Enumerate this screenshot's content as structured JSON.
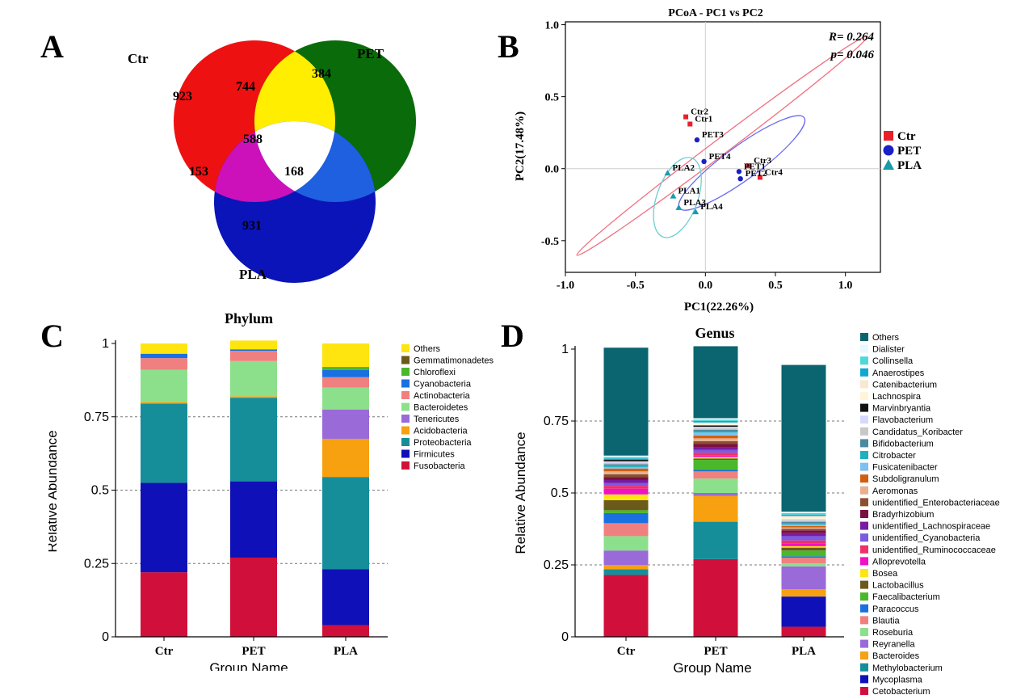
{
  "panels": {
    "a": "A",
    "b": "B",
    "c": "C",
    "d": "D"
  },
  "chart_data": [
    {
      "type": "venn",
      "sets": [
        "Ctr",
        "PET",
        "PLA"
      ],
      "regions": {
        "ctr_only": 923,
        "pet_only": 384,
        "pla_only": 931,
        "ctr_pet": 744,
        "ctr_pla": 153,
        "pet_pla": 168,
        "all": 588
      },
      "colors": {
        "ctr_only": "#ee1111",
        "pet_only": "#0a6b0a",
        "pla_only": "#0a14b8",
        "ctr_pet": "#ffee00",
        "ctr_pla": "#cc11bb",
        "pet_pla": "#1e60e0",
        "all": "#ffffff"
      }
    },
    {
      "type": "scatter",
      "title": "PCoA - PC1 vs PC2",
      "xlabel": "PC1(22.26%)",
      "ylabel": "PC2(17.48%)",
      "xlim": [
        -1.0,
        1.25
      ],
      "ylim": [
        -0.72,
        1.02
      ],
      "xticks": [
        "-1.0",
        "-0.5",
        "0.0",
        "0.5",
        "1.0"
      ],
      "yticks": [
        "-0.5",
        "0.0",
        "0.5",
        "1.0"
      ],
      "stats": {
        "r": "R= 0.264",
        "p": "p= 0.046"
      },
      "series": [
        {
          "name": "Ctr",
          "color": "#e8202a",
          "marker": "square",
          "points": [
            {
              "label": "Ctr2",
              "x": -0.14,
              "y": 0.36
            },
            {
              "label": "Ctr1",
              "x": -0.11,
              "y": 0.31
            },
            {
              "label": "Ctr3",
              "x": 0.31,
              "y": 0.02
            },
            {
              "label": "Ctr4",
              "x": 0.39,
              "y": -0.06
            }
          ]
        },
        {
          "name": "PET",
          "color": "#1a1fc8",
          "marker": "circle",
          "points": [
            {
              "label": "PET3",
              "x": -0.06,
              "y": 0.2
            },
            {
              "label": "PET4",
              "x": -0.01,
              "y": 0.05
            },
            {
              "label": "PET1",
              "x": 0.24,
              "y": -0.02
            },
            {
              "label": "PET2",
              "x": 0.25,
              "y": -0.07
            }
          ]
        },
        {
          "name": "PLA",
          "color": "#1a9ba8",
          "marker": "triangle",
          "points": [
            {
              "label": "PLA2",
              "x": -0.27,
              "y": -0.03
            },
            {
              "label": "PLA1",
              "x": -0.23,
              "y": -0.19
            },
            {
              "label": "PLA3",
              "x": -0.19,
              "y": -0.27
            },
            {
              "label": "PLA4",
              "x": -0.07,
              "y": -0.3
            }
          ]
        }
      ],
      "ellipses": [
        {
          "series": "Ctr",
          "color": "#f07080",
          "cx": 0.12,
          "cy": 0.16,
          "rx": 1.3,
          "ry": 0.055,
          "angle_deg": -37
        },
        {
          "series": "PET",
          "color": "#6a6af0",
          "cx": 0.26,
          "cy": 0.04,
          "rx": 0.55,
          "ry": 0.12,
          "angle_deg": -36
        },
        {
          "series": "PLA",
          "color": "#6ecfd0",
          "cx": -0.2,
          "cy": -0.2,
          "rx": 0.3,
          "ry": 0.145,
          "angle_deg": -70
        }
      ]
    },
    {
      "type": "bar",
      "stacked": true,
      "title": "Phylum",
      "xlabel": "Group Name",
      "ylabel": "Relative Abundance",
      "ylim": [
        0,
        1
      ],
      "yticks": [
        "0",
        "0.25",
        "0.5",
        "0.75",
        "1"
      ],
      "categories": [
        "Ctr",
        "PET",
        "PLA"
      ],
      "series": [
        {
          "name": "Fusobacteria",
          "color": "#d0103a",
          "values": [
            0.22,
            0.27,
            0.04
          ]
        },
        {
          "name": "Firmicutes",
          "color": "#1010b8",
          "values": [
            0.305,
            0.26,
            0.19
          ]
        },
        {
          "name": "Proteobacteria",
          "color": "#168e9a",
          "values": [
            0.27,
            0.285,
            0.315
          ]
        },
        {
          "name": "Acidobacteria",
          "color": "#f7a010",
          "values": [
            0.005,
            0.005,
            0.13
          ]
        },
        {
          "name": "Tenericutes",
          "color": "#9a6ad8",
          "values": [
            0.0,
            0.0,
            0.1
          ]
        },
        {
          "name": "Bacteroidetes",
          "color": "#8ce08c",
          "values": [
            0.11,
            0.12,
            0.075
          ]
        },
        {
          "name": "Actinobacteria",
          "color": "#f08080",
          "values": [
            0.04,
            0.035,
            0.035
          ]
        },
        {
          "name": "Cyanobacteria",
          "color": "#1a70e0",
          "values": [
            0.015,
            0.005,
            0.025
          ]
        },
        {
          "name": "Chloroflexi",
          "color": "#4ab82a",
          "values": [
            0.0,
            0.0,
            0.01
          ]
        },
        {
          "name": "Gemmatimonadetes",
          "color": "#6b5a1a",
          "values": [
            0.0,
            0.0,
            0.0
          ]
        },
        {
          "name": "Others",
          "color": "#ffe510",
          "values": [
            0.035,
            0.03,
            0.08
          ]
        }
      ]
    },
    {
      "type": "bar",
      "stacked": true,
      "title": "Genus",
      "xlabel": "Group Name",
      "ylabel": "Relative Abundance",
      "ylim": [
        0,
        1
      ],
      "yticks": [
        "0",
        "0.25",
        "0.5",
        "0.75",
        "1"
      ],
      "categories": [
        "Ctr",
        "PET",
        "PLA"
      ],
      "series": [
        {
          "name": "Cetobacterium",
          "color": "#d0103a",
          "values": [
            0.215,
            0.27,
            0.035
          ]
        },
        {
          "name": "Mycoplasma",
          "color": "#1010b8",
          "values": [
            0.0,
            0.0,
            0.105
          ]
        },
        {
          "name": "Methylobacterium",
          "color": "#168e9a",
          "values": [
            0.02,
            0.13,
            0.0
          ]
        },
        {
          "name": "Bacteroides",
          "color": "#f7a010",
          "values": [
            0.015,
            0.09,
            0.025
          ]
        },
        {
          "name": "Reyranella",
          "color": "#9a6ad8",
          "values": [
            0.05,
            0.01,
            0.08
          ]
        },
        {
          "name": "Roseburia",
          "color": "#8ce08c",
          "values": [
            0.05,
            0.05,
            0.01
          ]
        },
        {
          "name": "Blautia",
          "color": "#f08080",
          "values": [
            0.045,
            0.025,
            0.02
          ]
        },
        {
          "name": "Paracoccus",
          "color": "#1a70e0",
          "values": [
            0.035,
            0.005,
            0.005
          ]
        },
        {
          "name": "Faecalibacterium",
          "color": "#4ab82a",
          "values": [
            0.01,
            0.035,
            0.02
          ]
        },
        {
          "name": "Lactobacillus",
          "color": "#6b5a1a",
          "values": [
            0.035,
            0.005,
            0.01
          ]
        },
        {
          "name": "Bosea",
          "color": "#ffe510",
          "values": [
            0.02,
            0.005,
            0.005
          ]
        },
        {
          "name": "Alloprevotella",
          "color": "#f010c8",
          "values": [
            0.02,
            0.005,
            0.01
          ]
        },
        {
          "name": "unidentified_Ruminococcaceae",
          "color": "#f0306a",
          "values": [
            0.01,
            0.01,
            0.01
          ]
        },
        {
          "name": "unidentified_Cyanobacteria",
          "color": "#7a5ae0",
          "values": [
            0.01,
            0.01,
            0.015
          ]
        },
        {
          "name": "unidentified_Lachnospiraceae",
          "color": "#7a1aa0",
          "values": [
            0.01,
            0.01,
            0.01
          ]
        },
        {
          "name": "Bradyrhizobium",
          "color": "#7a1040",
          "values": [
            0.01,
            0.01,
            0.01
          ]
        },
        {
          "name": "unidentified_Enterobacteriaceae",
          "color": "#8a5030",
          "values": [
            0.01,
            0.01,
            0.005
          ]
        },
        {
          "name": "Aeromonas",
          "color": "#e8b090",
          "values": [
            0.01,
            0.01,
            0.005
          ]
        },
        {
          "name": "Subdoligranulum",
          "color": "#d06010",
          "values": [
            0.01,
            0.01,
            0.005
          ]
        },
        {
          "name": "Fusicatenibacter",
          "color": "#80c0f0",
          "values": [
            0.005,
            0.01,
            0.005
          ]
        },
        {
          "name": "Citrobacter",
          "color": "#20b0c0",
          "values": [
            0.005,
            0.005,
            0.005
          ]
        },
        {
          "name": "Bifidobacterium",
          "color": "#4a8aa0",
          "values": [
            0.005,
            0.005,
            0.005
          ]
        },
        {
          "name": "Candidatus_Koribacter",
          "color": "#c8c8c8",
          "values": [
            0.005,
            0.005,
            0.005
          ]
        },
        {
          "name": "Flavobacterium",
          "color": "#d8d8ff",
          "values": [
            0.005,
            0.005,
            0.005
          ]
        },
        {
          "name": "Marvinbryantia",
          "color": "#111111",
          "values": [
            0.005,
            0.005,
            0.0
          ]
        },
        {
          "name": "Lachnospira",
          "color": "#fff5d8",
          "values": [
            0.0,
            0.005,
            0.005
          ]
        },
        {
          "name": "Catenibacterium",
          "color": "#f8e8d0",
          "values": [
            0.0,
            0.005,
            0.005
          ]
        },
        {
          "name": "Anaerostipes",
          "color": "#10a8d0",
          "values": [
            0.005,
            0.005,
            0.005
          ]
        },
        {
          "name": "Collinsella",
          "color": "#50d8d8",
          "values": [
            0.005,
            0.005,
            0.005
          ]
        },
        {
          "name": "Dialister",
          "color": "#e8f8ff",
          "values": [
            0.005,
            0.005,
            0.005
          ]
        },
        {
          "name": "Others",
          "color": "#0a6570",
          "values": [
            0.375,
            0.25,
            0.51
          ]
        }
      ]
    }
  ]
}
